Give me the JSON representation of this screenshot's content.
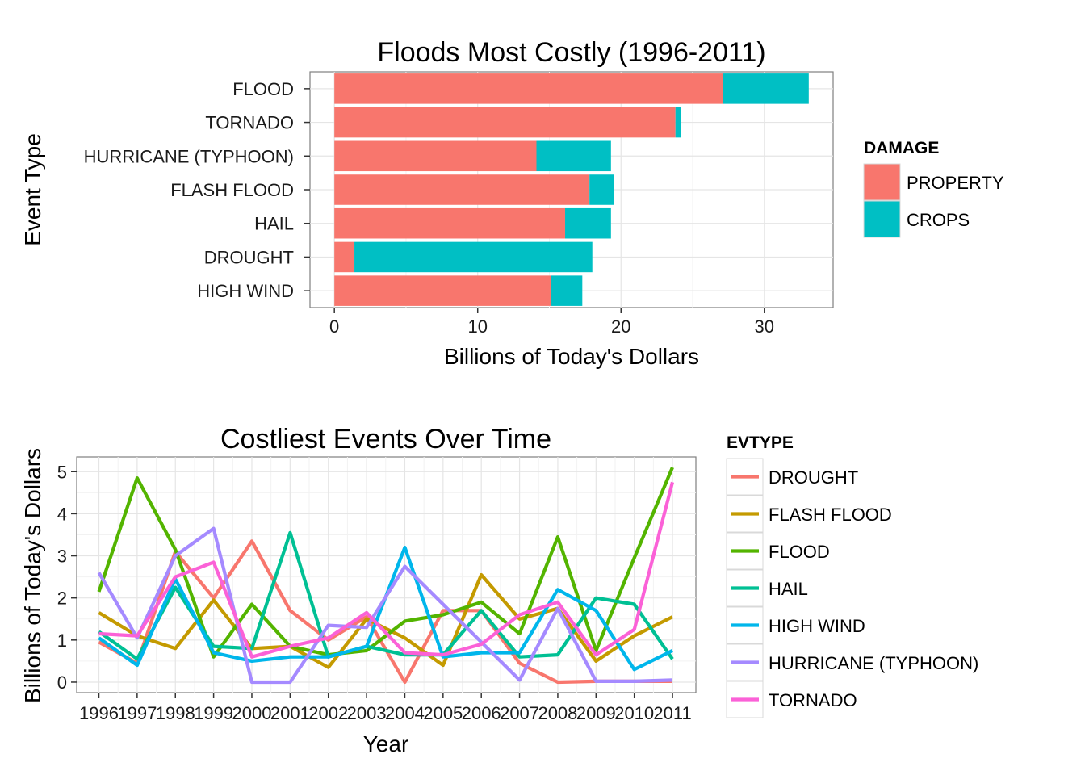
{
  "chart_data": [
    {
      "type": "bar",
      "orientation": "horizontal",
      "stacked": true,
      "title": "Floods Most Costly (1996-2011)",
      "xlabel": "Billions of Today's Dollars",
      "ylabel": "Event Type",
      "xlim": [
        -1.7,
        34.8
      ],
      "xticks": [
        0,
        10,
        20,
        30
      ],
      "grid": true,
      "legend_position": "right",
      "legend_title": "DAMAGE",
      "categories": [
        "FLOOD",
        "TORNADO",
        "HURRICANE (TYPHOON)",
        "FLASH FLOOD",
        "HAIL",
        "DROUGHT",
        "HIGH WIND"
      ],
      "series": [
        {
          "name": "PROPERTY",
          "color": "#F8766D",
          "values": [
            27.1,
            23.8,
            14.1,
            17.8,
            16.1,
            1.4,
            15.1
          ]
        },
        {
          "name": "CROPS",
          "color": "#00BFC4",
          "values": [
            6.0,
            0.4,
            5.2,
            1.7,
            3.2,
            16.6,
            2.2
          ]
        }
      ]
    },
    {
      "type": "line",
      "title": "Costliest Events Over Time",
      "xlabel": "Year",
      "ylabel": "Billions of Today's Dollars",
      "ylim": [
        -0.25,
        5.35
      ],
      "yticks": [
        0,
        1,
        2,
        3,
        4,
        5
      ],
      "grid": true,
      "legend_position": "right",
      "legend_title": "EVTYPE",
      "x": [
        "1996",
        "1997",
        "1998",
        "1999",
        "2000",
        "2001",
        "2002",
        "2003",
        "2004",
        "2005",
        "2006",
        "2007",
        "2008",
        "2009",
        "2010",
        "2011"
      ],
      "series": [
        {
          "name": "DROUGHT",
          "color": "#F8766D",
          "values": [
            0.95,
            0.45,
            3.1,
            2.0,
            3.35,
            1.7,
            1.0,
            1.55,
            0.0,
            1.7,
            1.7,
            0.45,
            0.0,
            0.02,
            0.02,
            0.02
          ]
        },
        {
          "name": "FLASH FLOOD",
          "color": "#C49A00",
          "values": [
            1.65,
            1.1,
            0.8,
            1.95,
            0.8,
            0.85,
            0.35,
            1.5,
            1.05,
            0.4,
            2.55,
            1.5,
            1.75,
            0.5,
            1.1,
            1.55
          ]
        },
        {
          "name": "FLOOD",
          "color": "#53B400",
          "values": [
            2.15,
            4.85,
            3.15,
            0.6,
            1.85,
            0.85,
            0.65,
            0.75,
            1.45,
            1.6,
            1.9,
            1.15,
            3.45,
            0.75,
            2.95,
            5.1
          ]
        },
        {
          "name": "HAIL",
          "color": "#00C094",
          "values": [
            1.2,
            0.55,
            2.25,
            0.85,
            0.8,
            3.55,
            0.6,
            0.85,
            0.65,
            0.65,
            1.7,
            0.6,
            0.65,
            2.0,
            1.85,
            0.55
          ]
        },
        {
          "name": "HIGH WIND",
          "color": "#00B6EB",
          "values": [
            1.05,
            0.4,
            2.45,
            0.7,
            0.5,
            0.6,
            0.6,
            0.85,
            3.2,
            0.6,
            0.7,
            0.7,
            2.2,
            1.7,
            0.3,
            0.75
          ]
        },
        {
          "name": "HURRICANE (TYPHOON)",
          "color": "#A58AFF",
          "values": [
            2.6,
            1.05,
            3.0,
            3.65,
            0.0,
            0.0,
            1.35,
            1.3,
            2.75,
            1.85,
            0.95,
            0.05,
            1.75,
            0.02,
            0.02,
            0.05
          ]
        },
        {
          "name": "TORNADO",
          "color": "#FB61D7",
          "values": [
            1.15,
            1.1,
            2.5,
            2.85,
            0.6,
            0.85,
            1.05,
            1.65,
            0.7,
            0.65,
            0.9,
            1.6,
            1.9,
            0.65,
            1.25,
            4.75
          ]
        }
      ]
    }
  ]
}
